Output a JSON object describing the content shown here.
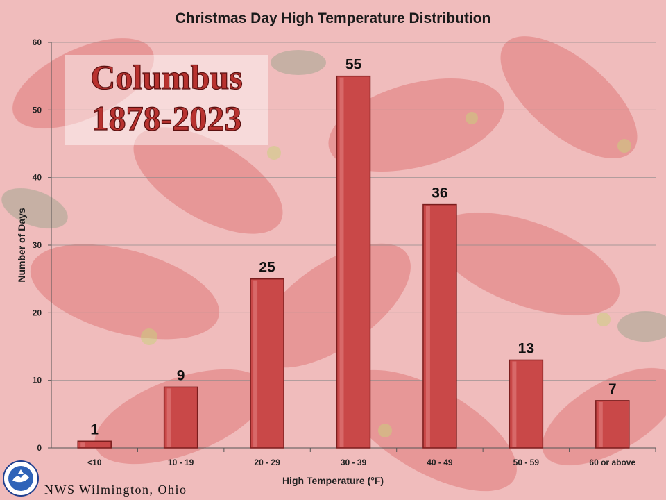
{
  "footer": {
    "office": "NWS Wilmington, Ohio"
  },
  "inset": {
    "line1": "Columbus",
    "line2": "1878-2023"
  },
  "colors": {
    "bar_fill": "#c94848",
    "bar_edge": "#7a1d1d",
    "background": "#f3c9c9",
    "inset_text": "#b8322f"
  },
  "chart_data": {
    "type": "bar",
    "title": "Christmas Day High Temperature Distribution",
    "xlabel": "High Temperature (°F)",
    "ylabel": "Number of Days",
    "categories": [
      "<10",
      "10 - 19",
      "20 - 29",
      "30 - 39",
      "40 - 49",
      "50 - 59",
      "60 or above"
    ],
    "values": [
      1,
      9,
      25,
      55,
      36,
      13,
      7
    ],
    "ylim": [
      0,
      60
    ],
    "yticks": [
      0,
      10,
      20,
      30,
      40,
      50,
      60
    ],
    "grid": true,
    "data_labels": true
  }
}
